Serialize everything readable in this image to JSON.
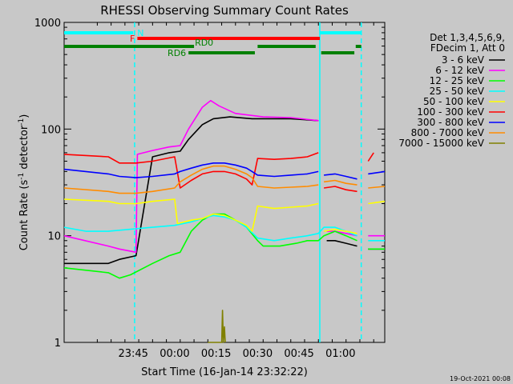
{
  "chart_data": {
    "type": "line",
    "title": "RHESSI Observing Summary Count Rates",
    "xlabel": "Start Time (16-Jan-14 23:32:22)",
    "ylabel_main": "Count Rate (s",
    "ylabel_sup": "-1",
    "ylabel_rest": " detector",
    "ylabel_end": ")",
    "yscale": "log",
    "ylim": [
      1,
      1000
    ],
    "y_ticks": [
      {
        "value": 1,
        "label": "1"
      },
      {
        "value": 10,
        "label": "10"
      },
      {
        "value": 100,
        "label": "100"
      },
      {
        "value": 1000,
        "label": "1000"
      }
    ],
    "x_range_min": [
      -12,
      104
    ],
    "x_ticks": [
      {
        "min": 13,
        "label": "23:45"
      },
      {
        "min": 28,
        "label": "00:00"
      },
      {
        "min": 43,
        "label": "00:15"
      },
      {
        "min": 58,
        "label": "00:30"
      },
      {
        "min": 73,
        "label": "00:45"
      },
      {
        "min": 88,
        "label": "01:00"
      }
    ],
    "legend_title": [
      "Det 1,3,4,5,6,9,",
      "FDecim 1, Att 0"
    ],
    "legend_placement": "top-right outside",
    "series": [
      {
        "name": "3 - 6 keV",
        "color": "#000000",
        "points": [
          [
            -12,
            5.5
          ],
          [
            4,
            5.5
          ],
          [
            8,
            6
          ],
          [
            14,
            6.5
          ],
          [
            20,
            55
          ],
          [
            26,
            60
          ],
          [
            30,
            62
          ],
          [
            33,
            80
          ],
          [
            38,
            110
          ],
          [
            42,
            125
          ],
          [
            48,
            130
          ],
          [
            56,
            125
          ],
          [
            70,
            125
          ],
          [
            80,
            120
          ],
          [
            80.5,
            null
          ],
          [
            83,
            9
          ],
          [
            86,
            9
          ],
          [
            90,
            8.5
          ],
          [
            94,
            8
          ],
          [
            96,
            null
          ],
          [
            98,
            7.5
          ],
          [
            104,
            7.5
          ]
        ]
      },
      {
        "name": "6 - 12 keV",
        "color": "#ff00ff",
        "points": [
          [
            -12,
            10
          ],
          [
            4,
            8
          ],
          [
            8,
            7.5
          ],
          [
            14,
            7
          ],
          [
            14.5,
            58
          ],
          [
            20,
            63
          ],
          [
            26,
            68
          ],
          [
            30,
            70
          ],
          [
            33,
            100
          ],
          [
            38,
            160
          ],
          [
            41,
            185
          ],
          [
            44,
            165
          ],
          [
            50,
            140
          ],
          [
            60,
            130
          ],
          [
            70,
            128
          ],
          [
            80,
            120
          ],
          [
            80.5,
            null
          ],
          [
            83,
            11
          ],
          [
            86,
            11
          ],
          [
            90,
            10.5
          ],
          [
            94,
            10
          ],
          [
            96,
            null
          ],
          [
            98,
            10
          ],
          [
            104,
            10
          ]
        ]
      },
      {
        "name": "12 - 25 keV",
        "color": "#00ff00",
        "points": [
          [
            -12,
            5
          ],
          [
            4,
            4.5
          ],
          [
            8,
            4
          ],
          [
            12,
            4.3
          ],
          [
            20,
            5.5
          ],
          [
            26,
            6.5
          ],
          [
            30,
            7
          ],
          [
            34,
            11
          ],
          [
            38,
            14
          ],
          [
            42,
            16
          ],
          [
            46,
            16
          ],
          [
            50,
            14
          ],
          [
            54,
            12
          ],
          [
            58,
            9
          ],
          [
            60,
            8
          ],
          [
            66,
            8
          ],
          [
            72,
            8.5
          ],
          [
            76,
            9
          ],
          [
            80,
            9
          ],
          [
            82,
            10
          ],
          [
            86,
            11
          ],
          [
            90,
            10
          ],
          [
            94,
            9
          ],
          [
            96,
            null
          ],
          [
            98,
            7.5
          ],
          [
            104,
            7.5
          ]
        ]
      },
      {
        "name": "25 - 50 keV",
        "color": "#00ffff",
        "points": [
          [
            -12,
            12
          ],
          [
            -4,
            11
          ],
          [
            4,
            11
          ],
          [
            12,
            11.5
          ],
          [
            20,
            12
          ],
          [
            28,
            12.5
          ],
          [
            34,
            13.5
          ],
          [
            38,
            14.5
          ],
          [
            42,
            15.5
          ],
          [
            46,
            15
          ],
          [
            50,
            14
          ],
          [
            54,
            12
          ],
          [
            58,
            9.5
          ],
          [
            64,
            9
          ],
          [
            70,
            9.5
          ],
          [
            76,
            10
          ],
          [
            80,
            10.5
          ],
          [
            82,
            12
          ],
          [
            86,
            12
          ],
          [
            90,
            11
          ],
          [
            94,
            10
          ],
          [
            96,
            null
          ],
          [
            98,
            9
          ],
          [
            104,
            9
          ]
        ]
      },
      {
        "name": "50 - 100 keV",
        "color": "#ffff00",
        "points": [
          [
            -12,
            22
          ],
          [
            4,
            21
          ],
          [
            8,
            20
          ],
          [
            14,
            20
          ],
          [
            20,
            21
          ],
          [
            28,
            22
          ],
          [
            29,
            13
          ],
          [
            34,
            14
          ],
          [
            38,
            14.5
          ],
          [
            42,
            16
          ],
          [
            46,
            15.5
          ],
          [
            50,
            14
          ],
          [
            54,
            12.5
          ],
          [
            56,
            11
          ],
          [
            58,
            19
          ],
          [
            64,
            18
          ],
          [
            70,
            18.5
          ],
          [
            76,
            19
          ],
          [
            80,
            20
          ],
          [
            80.5,
            null
          ],
          [
            82,
            11
          ],
          [
            86,
            11.5
          ],
          [
            90,
            11
          ],
          [
            94,
            10.5
          ],
          [
            96,
            null
          ],
          [
            98,
            20
          ],
          [
            104,
            21
          ]
        ]
      },
      {
        "name": "100 - 300 keV",
        "color": "#ff0000",
        "points": [
          [
            -12,
            58
          ],
          [
            4,
            55
          ],
          [
            8,
            48
          ],
          [
            14,
            48
          ],
          [
            20,
            50
          ],
          [
            28,
            55
          ],
          [
            30,
            28
          ],
          [
            34,
            33
          ],
          [
            38,
            38
          ],
          [
            42,
            40
          ],
          [
            46,
            40
          ],
          [
            50,
            38
          ],
          [
            54,
            34
          ],
          [
            56,
            30
          ],
          [
            58,
            53
          ],
          [
            64,
            52
          ],
          [
            70,
            53
          ],
          [
            76,
            55
          ],
          [
            80,
            60
          ],
          [
            80.5,
            null
          ],
          [
            82,
            28
          ],
          [
            86,
            29
          ],
          [
            90,
            27
          ],
          [
            94,
            26
          ],
          [
            96,
            null
          ],
          [
            98,
            50
          ],
          [
            100,
            60
          ]
        ]
      },
      {
        "name": "300 - 800 keV",
        "color": "#0000ff",
        "points": [
          [
            -12,
            42
          ],
          [
            4,
            38
          ],
          [
            8,
            36
          ],
          [
            14,
            35
          ],
          [
            20,
            36
          ],
          [
            28,
            38
          ],
          [
            30,
            40
          ],
          [
            34,
            43
          ],
          [
            38,
            46
          ],
          [
            42,
            48
          ],
          [
            46,
            48
          ],
          [
            50,
            46
          ],
          [
            54,
            43
          ],
          [
            56,
            40
          ],
          [
            58,
            37
          ],
          [
            64,
            36
          ],
          [
            70,
            37
          ],
          [
            76,
            38
          ],
          [
            80,
            40
          ],
          [
            80.5,
            null
          ],
          [
            82,
            37
          ],
          [
            86,
            38
          ],
          [
            90,
            36
          ],
          [
            94,
            34
          ],
          [
            96,
            null
          ],
          [
            98,
            38
          ],
          [
            104,
            40
          ]
        ]
      },
      {
        "name": "800 - 7000 keV",
        "color": "#ff8c00",
        "points": [
          [
            -12,
            28
          ],
          [
            4,
            26
          ],
          [
            8,
            25
          ],
          [
            14,
            25
          ],
          [
            20,
            26
          ],
          [
            28,
            28
          ],
          [
            30,
            32
          ],
          [
            34,
            37
          ],
          [
            38,
            42
          ],
          [
            42,
            45
          ],
          [
            46,
            45
          ],
          [
            50,
            42
          ],
          [
            54,
            38
          ],
          [
            56,
            35
          ],
          [
            58,
            29
          ],
          [
            64,
            28
          ],
          [
            70,
            28.5
          ],
          [
            76,
            29
          ],
          [
            80,
            30
          ],
          [
            80.5,
            null
          ],
          [
            82,
            32
          ],
          [
            86,
            33
          ],
          [
            90,
            31
          ],
          [
            94,
            30
          ],
          [
            96,
            null
          ],
          [
            98,
            28
          ],
          [
            104,
            29
          ]
        ]
      },
      {
        "name": "7000 - 15000 keV",
        "color": "#808000",
        "points": [
          [
            40,
            1
          ],
          [
            45,
            1
          ],
          [
            45.3,
            2
          ],
          [
            45.6,
            1
          ],
          [
            46,
            1.4
          ],
          [
            46.3,
            1
          ]
        ]
      }
    ],
    "dashed_lines_min": [
      13.5,
      95.5
    ],
    "solid_lines_min": [
      80.5
    ],
    "status_bars": [
      {
        "label": "N",
        "color": "#00ffff",
        "row": 1,
        "segments": [
          [
            -12,
            13
          ],
          [
            80.5,
            95.5
          ]
        ]
      },
      {
        "label": "F",
        "color": "#ff0000",
        "row": 2,
        "segments": [
          [
            14.5,
            80.5
          ]
        ]
      },
      {
        "label": "RD0",
        "color": "#008000",
        "row": 3,
        "segments": [
          [
            -12,
            35
          ],
          [
            58,
            79
          ],
          [
            93.5,
            95.5
          ]
        ]
      },
      {
        "label": "RD6",
        "color": "#008000",
        "row": 4,
        "segments": [
          [
            33,
            57
          ],
          [
            81,
            93
          ]
        ]
      }
    ],
    "timestamp": "19-Oct-2021 00:08"
  }
}
